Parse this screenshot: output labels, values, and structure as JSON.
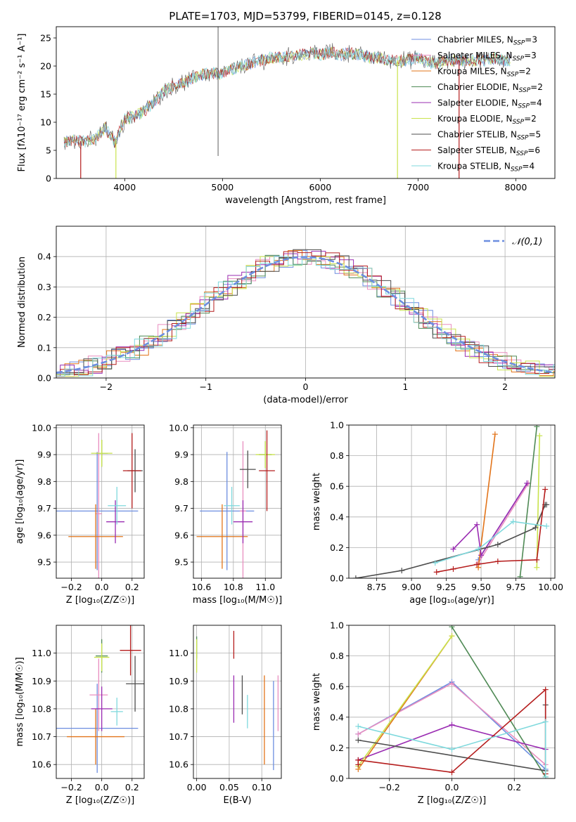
{
  "title": "PLATE=1703, MJD=53799, FIBERID=0145, z=0.128",
  "colors": {
    "Chabrier MILES": "#6c8ee0",
    "Salpeter MILES": "#e98ec0",
    "Kroupa MILES": "#e2741a",
    "Chabrier ELODIE": "#4f8a55",
    "Salpeter ELODIE": "#9a2cb2",
    "Kroupa ELODIE": "#c9e34d",
    "Chabrier STELIB": "#4d4d4d",
    "Salpeter STELIB": "#b51d1d",
    "Kroupa STELIB": "#7fd9dd"
  },
  "legend_names": [
    "Chabrier MILES",
    "Salpeter MILES",
    "Kroupa MILES",
    "Chabrier ELODIE",
    "Salpeter ELODIE",
    "Kroupa ELODIE",
    "Chabrier STELIB",
    "Salpeter STELIB",
    "Kroupa STELIB"
  ],
  "nssp": [
    3,
    3,
    2,
    2,
    4,
    2,
    5,
    6,
    4
  ],
  "chart_data": [
    {
      "type": "line",
      "xlabel": "wavelength [Angstrom, rest frame]",
      "ylabel": "Flux [fλ10⁻¹⁷ erg cm⁻² s⁻¹ A⁻¹]",
      "xlim": [
        3300,
        8400
      ],
      "ylim": [
        0,
        27
      ],
      "xticks": [
        4000,
        5000,
        6000,
        7000,
        8000
      ],
      "yticks": [
        0,
        5,
        10,
        15,
        20,
        25
      ],
      "legend_position": "top-right",
      "spectrum_x": [
        3400,
        3500,
        3600,
        3700,
        3800,
        3900,
        4000,
        4100,
        4200,
        4300,
        4400,
        4500,
        4600,
        4700,
        4800,
        4900,
        5000,
        5100,
        5200,
        5300,
        5400,
        5500,
        5600,
        5700,
        5800,
        5900,
        6000,
        6100,
        6200,
        6300,
        6400,
        6500,
        6600,
        6700,
        6800,
        6900,
        7000,
        7100,
        7200,
        7300,
        7400,
        7500,
        7600,
        7700,
        7800,
        7900
      ],
      "spectrum_y": [
        6.5,
        6.8,
        6.5,
        7.0,
        9.0,
        6.5,
        10.5,
        11.0,
        12.0,
        13.5,
        15.5,
        16.5,
        17.0,
        17.8,
        18.5,
        18.8,
        18.5,
        19.5,
        20.0,
        20.5,
        21.0,
        21.5,
        21.5,
        21.8,
        22.0,
        22.5,
        22.0,
        22.5,
        22.0,
        22.3,
        22.0,
        21.5,
        21.5,
        21.0,
        21.0,
        21.0,
        21.5,
        20.5,
        20.5,
        21.0,
        21.0,
        21.0,
        21.0,
        21.0,
        21.5,
        21.0
      ],
      "drops": [
        {
          "model": "Salpeter STELIB",
          "x": 3550
        },
        {
          "model": "Kroupa ELODIE",
          "x": 3910
        },
        {
          "model": "Kroupa ELODIE",
          "x": 6790
        },
        {
          "model": "Salpeter STELIB",
          "x": 7420
        }
      ]
    },
    {
      "type": "histogram",
      "xlabel": "(data-model)/error",
      "ylabel": "Normed distribution",
      "xlim": [
        -2.5,
        2.5
      ],
      "ylim": [
        0,
        0.5
      ],
      "xticks": [
        -2,
        -1,
        0,
        1,
        2
      ],
      "yticks": [
        0.0,
        0.1,
        0.2,
        0.3,
        0.4
      ],
      "reference_label": "𝒩(0,1)",
      "reference_color": "#6c8ee0",
      "legend_position": "top-right"
    },
    {
      "type": "errorbar",
      "xlabel": "Z [log₁₀(Z/Z☉)]",
      "ylabel": "age  [log₁₀(age/yr)]",
      "xlim": [
        -0.3,
        0.28
      ],
      "ylim": [
        9.44,
        10.01
      ],
      "xticks": [
        -0.2,
        0.0,
        0.2
      ],
      "yticks": [
        9.5,
        9.6,
        9.7,
        9.8,
        9.9,
        10.0
      ],
      "points": [
        {
          "model": "Chabrier MILES",
          "x": -0.03,
          "xerr": 0.27,
          "y": 9.69,
          "yerr": 0.22
        },
        {
          "model": "Salpeter MILES",
          "x": -0.02,
          "xerr": 0.02,
          "y": 9.68,
          "yerr": 0.3
        },
        {
          "model": "Kroupa MILES",
          "x": -0.04,
          "xerr": 0.18,
          "y": 9.595,
          "yerr": 0.12
        },
        {
          "model": "Chabrier ELODIE",
          "x": 0.0,
          "xerr": 0.04,
          "y": 9.905,
          "yerr": 0.05
        },
        {
          "model": "Salpeter ELODIE",
          "x": 0.09,
          "xerr": 0.06,
          "y": 9.65,
          "yerr": 0.08
        },
        {
          "model": "Kroupa ELODIE",
          "x": 0.0,
          "xerr": 0.07,
          "y": 9.905,
          "yerr": 0.05
        },
        {
          "model": "Chabrier STELIB",
          "x": 0.22,
          "xerr": 0.05,
          "y": 9.84,
          "yerr": 0.08
        },
        {
          "model": "Salpeter STELIB",
          "x": 0.2,
          "xerr": 0.06,
          "y": 9.84,
          "yerr": 0.14
        },
        {
          "model": "Kroupa STELIB",
          "x": 0.1,
          "xerr": 0.06,
          "y": 9.71,
          "yerr": 0.07
        }
      ]
    },
    {
      "type": "errorbar",
      "xlabel": "mass [log₁₀(M/M☉)]",
      "ylabel": "",
      "xlim": [
        10.55,
        11.1
      ],
      "ylim": [
        9.44,
        10.01
      ],
      "xticks": [
        10.6,
        10.8,
        11.0
      ],
      "yticks": [
        9.5,
        9.6,
        9.7,
        9.8,
        9.9,
        10.0
      ],
      "points": [
        {
          "model": "Chabrier MILES",
          "x": 10.76,
          "xerr": 0.17,
          "y": 9.69,
          "yerr": 0.22
        },
        {
          "model": "Salpeter MILES",
          "x": 10.86,
          "xerr": 0.02,
          "y": 9.69,
          "yerr": 0.26
        },
        {
          "model": "Kroupa MILES",
          "x": 10.73,
          "xerr": 0.16,
          "y": 9.595,
          "yerr": 0.12
        },
        {
          "model": "Chabrier ELODIE",
          "x": 11.0,
          "xerr": 0.04,
          "y": 9.9,
          "yerr": 0.05
        },
        {
          "model": "Salpeter ELODIE",
          "x": 10.86,
          "xerr": 0.06,
          "y": 9.65,
          "yerr": 0.08
        },
        {
          "model": "Kroupa ELODIE",
          "x": 11.0,
          "xerr": 0.06,
          "y": 9.9,
          "yerr": 0.05
        },
        {
          "model": "Chabrier STELIB",
          "x": 10.89,
          "xerr": 0.05,
          "y": 9.845,
          "yerr": 0.07
        },
        {
          "model": "Salpeter STELIB",
          "x": 11.01,
          "xerr": 0.05,
          "y": 9.84,
          "yerr": 0.15
        },
        {
          "model": "Kroupa STELIB",
          "x": 10.79,
          "xerr": 0.05,
          "y": 9.71,
          "yerr": 0.07
        }
      ]
    },
    {
      "type": "line",
      "xlabel": "age  [log₁₀(age/yr)]",
      "ylabel": "mass weight",
      "xlim": [
        8.55,
        10.03
      ],
      "ylim": [
        0,
        1.0
      ],
      "xticks": [
        8.75,
        9.0,
        9.25,
        9.5,
        9.75,
        10.0
      ],
      "yticks": [
        0.0,
        0.2,
        0.4,
        0.6,
        0.8,
        1.0
      ],
      "series": [
        {
          "model": "Chabrier MILES",
          "x": [
            9.48,
            9.83
          ],
          "y": [
            0.12,
            0.62
          ]
        },
        {
          "model": "Salpeter MILES",
          "x": [
            9.48,
            9.84
          ],
          "y": [
            0.1,
            0.62
          ]
        },
        {
          "model": "Kroupa MILES",
          "x": [
            9.48,
            9.6
          ],
          "y": [
            0.07,
            0.94
          ]
        },
        {
          "model": "Chabrier ELODIE",
          "x": [
            9.78,
            9.9
          ],
          "y": [
            0.01,
            0.99
          ]
        },
        {
          "model": "Salpeter ELODIE",
          "x": [
            9.3,
            9.47,
            9.5,
            9.83
          ],
          "y": [
            0.19,
            0.35,
            0.15,
            0.62
          ]
        },
        {
          "model": "Kroupa ELODIE",
          "x": [
            9.9,
            9.92
          ],
          "y": [
            0.07,
            0.93
          ]
        },
        {
          "model": "Chabrier STELIB",
          "x": [
            8.6,
            8.93,
            9.62,
            9.89,
            9.96,
            9.97
          ],
          "y": [
            0.0,
            0.05,
            0.22,
            0.33,
            0.48,
            0.48
          ]
        },
        {
          "model": "Salpeter STELIB",
          "x": [
            9.18,
            9.3,
            9.47,
            9.62,
            9.9,
            9.96
          ],
          "y": [
            0.04,
            0.06,
            0.09,
            0.11,
            0.12,
            0.58
          ]
        },
        {
          "model": "Kroupa STELIB",
          "x": [
            9.17,
            9.48,
            9.73,
            9.97
          ],
          "y": [
            0.1,
            0.19,
            0.37,
            0.34
          ]
        }
      ]
    },
    {
      "type": "errorbar",
      "xlabel": "Z [log₁₀(Z/Z☉)]",
      "ylabel": "mass [log₁₀(M/M☉)]",
      "xlim": [
        -0.3,
        0.28
      ],
      "ylim": [
        10.55,
        11.1
      ],
      "xticks": [
        -0.2,
        0.0,
        0.2
      ],
      "yticks": [
        10.6,
        10.7,
        10.8,
        10.9,
        11.0
      ],
      "points": [
        {
          "model": "Chabrier MILES",
          "x": -0.03,
          "xerr": 0.27,
          "y": 10.73,
          "yerr": 0.16
        },
        {
          "model": "Salpeter MILES",
          "x": -0.02,
          "xerr": 0.06,
          "y": 10.85,
          "yerr": 0.13
        },
        {
          "model": "Kroupa MILES",
          "x": -0.04,
          "xerr": 0.19,
          "y": 10.7,
          "yerr": 0.1
        },
        {
          "model": "Chabrier ELODIE",
          "x": 0.0,
          "xerr": 0.04,
          "y": 10.99,
          "yerr": 0.06
        },
        {
          "model": "Salpeter ELODIE",
          "x": 0.0,
          "xerr": 0.07,
          "y": 10.8,
          "yerr": 0.08
        },
        {
          "model": "Kroupa ELODIE",
          "x": 0.0,
          "xerr": 0.05,
          "y": 10.985,
          "yerr": 0.05
        },
        {
          "model": "Chabrier STELIB",
          "x": 0.22,
          "xerr": 0.06,
          "y": 10.89,
          "yerr": 0.1
        },
        {
          "model": "Salpeter STELIB",
          "x": 0.19,
          "xerr": 0.07,
          "y": 11.01,
          "yerr": 0.09
        },
        {
          "model": "Kroupa STELIB",
          "x": 0.1,
          "xerr": 0.04,
          "y": 10.79,
          "yerr": 0.05
        }
      ]
    },
    {
      "type": "errorbar",
      "xlabel": "E(B-V)",
      "ylabel": "",
      "xlim": [
        -0.005,
        0.13
      ],
      "ylim": [
        10.55,
        11.1
      ],
      "xticks": [
        0.0,
        0.05,
        0.1
      ],
      "yticks": [
        10.6,
        10.7,
        10.8,
        10.9,
        11.0
      ],
      "points": [
        {
          "model": "Chabrier MILES",
          "x": 0.118,
          "xerr": 0,
          "y": 10.74,
          "yerr": 0.16
        },
        {
          "model": "Salpeter MILES",
          "x": 0.125,
          "xerr": 0,
          "y": 10.82,
          "yerr": 0.1
        },
        {
          "model": "Kroupa MILES",
          "x": 0.104,
          "xerr": 0,
          "y": 10.76,
          "yerr": 0.16
        },
        {
          "model": "Chabrier ELODIE",
          "x": 0.0,
          "xerr": 0,
          "y": 11.02,
          "yerr": 0.04
        },
        {
          "model": "Salpeter ELODIE",
          "x": 0.057,
          "xerr": 0,
          "y": 10.835,
          "yerr": 0.085
        },
        {
          "model": "Kroupa ELODIE",
          "x": 0.0,
          "xerr": 0,
          "y": 10.99,
          "yerr": 0.06
        },
        {
          "model": "Chabrier STELIB",
          "x": 0.07,
          "xerr": 0,
          "y": 10.85,
          "yerr": 0.07
        },
        {
          "model": "Salpeter STELIB",
          "x": 0.057,
          "xerr": 0,
          "y": 11.03,
          "yerr": 0.05
        },
        {
          "model": "Kroupa STELIB",
          "x": 0.078,
          "xerr": 0,
          "y": 10.79,
          "yerr": 0.06
        }
      ]
    },
    {
      "type": "line",
      "xlabel": "Z [log₁₀(Z/Z☉)]",
      "ylabel": "mass weight",
      "xlim": [
        -0.33,
        0.33
      ],
      "ylim": [
        0,
        1.0
      ],
      "xticks": [
        -0.2,
        0.0,
        0.2
      ],
      "yticks": [
        0.0,
        0.2,
        0.4,
        0.6,
        0.8,
        1.0
      ],
      "series": [
        {
          "model": "Chabrier MILES",
          "x": [
            -0.3,
            0.0,
            0.3
          ],
          "y": [
            0.29,
            0.63,
            0.06
          ]
        },
        {
          "model": "Salpeter MILES",
          "x": [
            -0.3,
            0.0,
            0.3
          ],
          "y": [
            0.29,
            0.62,
            0.09
          ]
        },
        {
          "model": "Kroupa MILES",
          "x": [
            -0.3,
            0.0
          ],
          "y": [
            0.06,
            0.93
          ]
        },
        {
          "model": "Chabrier ELODIE",
          "x": [
            0.0,
            0.3
          ],
          "y": [
            0.99,
            0.01
          ]
        },
        {
          "model": "Salpeter ELODIE",
          "x": [
            -0.3,
            0.0,
            0.3
          ],
          "y": [
            0.12,
            0.35,
            0.19
          ]
        },
        {
          "model": "Kroupa ELODIE",
          "x": [
            -0.3,
            0.0
          ],
          "y": [
            0.08,
            0.93
          ]
        },
        {
          "model": "Chabrier STELIB",
          "x": [
            -0.3,
            0.3,
            0.3
          ],
          "y": [
            0.25,
            0.05,
            0.48
          ]
        },
        {
          "model": "Salpeter STELIB",
          "x": [
            -0.3,
            -0.3,
            0.0,
            0.3,
            0.3
          ],
          "y": [
            0.09,
            0.12,
            0.04,
            0.58,
            0.03
          ]
        },
        {
          "model": "Kroupa STELIB",
          "x": [
            -0.3,
            0.0,
            0.3,
            0.3
          ],
          "y": [
            0.34,
            0.19,
            0.37,
            0.01
          ]
        }
      ]
    }
  ]
}
